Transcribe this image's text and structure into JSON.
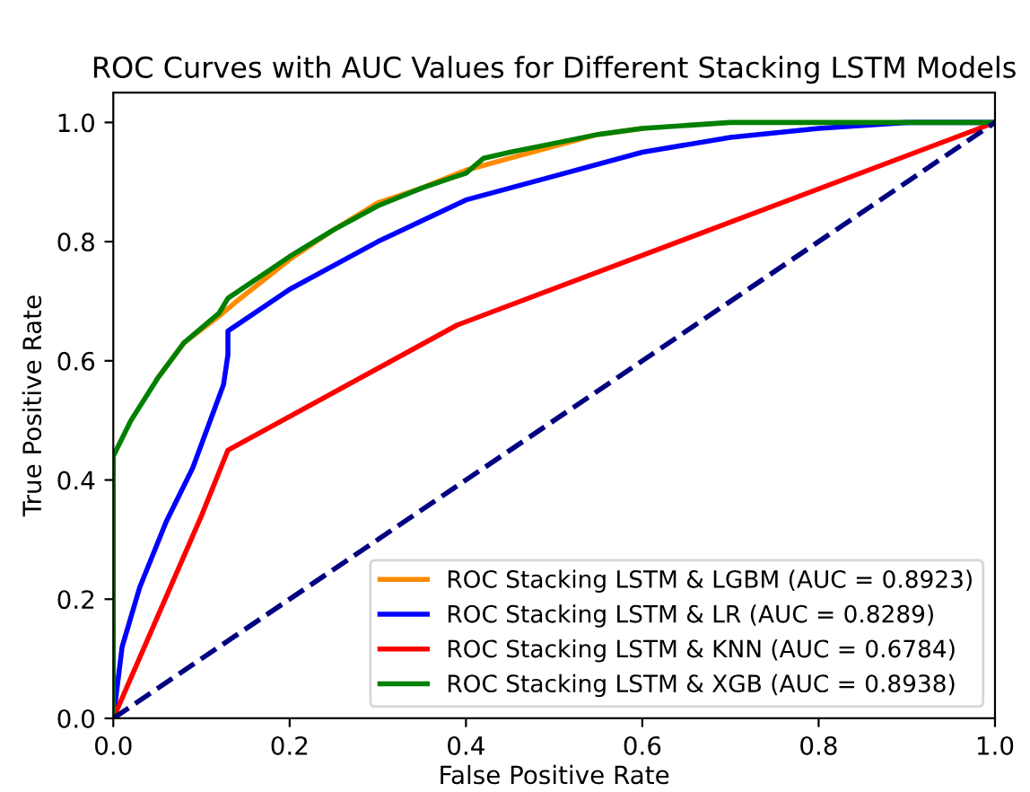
{
  "chart_data": {
    "type": "line",
    "title": "ROC Curves with AUC Values for Different Stacking LSTM Models",
    "xlabel": "False Positive Rate",
    "ylabel": "True Positive Rate",
    "xlim": [
      0,
      1
    ],
    "ylim": [
      0,
      1.05
    ],
    "xticks": [
      {
        "value": 0,
        "label": "0.0"
      },
      {
        "value": 0.2,
        "label": "0.2"
      },
      {
        "value": 0.4,
        "label": "0.4"
      },
      {
        "value": 0.6,
        "label": "0.6"
      },
      {
        "value": 0.8,
        "label": "0.8"
      },
      {
        "value": 1,
        "label": "1.0"
      }
    ],
    "yticks": [
      {
        "value": 0,
        "label": "0.0"
      },
      {
        "value": 0.2,
        "label": "0.2"
      },
      {
        "value": 0.4,
        "label": "0.4"
      },
      {
        "value": 0.6,
        "label": "0.6"
      },
      {
        "value": 0.8,
        "label": "0.8"
      },
      {
        "value": 1,
        "label": "1.0"
      }
    ],
    "grid": false,
    "legend": "bottom right",
    "marker": "none",
    "series": [
      {
        "name": "ROC Stacking LSTM & LGBM (AUC = 0.8923)",
        "color": "#ff8c00",
        "x": [
          0.05,
          0.08,
          0.12,
          0.14,
          0.2,
          0.25,
          0.3,
          0.35,
          0.4,
          0.45,
          0.5,
          0.55,
          0.6
        ],
        "values": [
          0.57,
          0.63,
          0.675,
          0.7,
          0.77,
          0.82,
          0.865,
          0.89,
          0.92,
          0.94,
          0.96,
          0.98,
          0.99
        ]
      },
      {
        "name": "ROC Stacking LSTM & LR (AUC = 0.8289)",
        "color": "#0000ff",
        "x": [
          0,
          0.01,
          0.03,
          0.06,
          0.09,
          0.11,
          0.125,
          0.13,
          0.13,
          0.2,
          0.3,
          0.4,
          0.5,
          0.6,
          0.7,
          0.8,
          0.9,
          1
        ],
        "values": [
          0,
          0.12,
          0.22,
          0.33,
          0.42,
          0.5,
          0.56,
          0.61,
          0.65,
          0.72,
          0.8,
          0.87,
          0.91,
          0.95,
          0.975,
          0.99,
          1.0,
          1.0
        ]
      },
      {
        "name": "ROC Stacking LSTM & KNN (AUC = 0.6784)",
        "color": "#ff0000",
        "x": [
          0,
          0.1,
          0.13,
          0.39,
          1
        ],
        "values": [
          0,
          0.34,
          0.45,
          0.66,
          1
        ]
      },
      {
        "name": "ROC Stacking LSTM & XGB (AUC = 0.8938)",
        "color": "#008000",
        "x": [
          0,
          0,
          0.02,
          0.05,
          0.08,
          0.12,
          0.13,
          0.2,
          0.25,
          0.3,
          0.35,
          0.4,
          0.42,
          0.45,
          0.5,
          0.55,
          0.6,
          0.7,
          1
        ],
        "values": [
          0,
          0.44,
          0.5,
          0.57,
          0.63,
          0.68,
          0.705,
          0.775,
          0.82,
          0.86,
          0.89,
          0.915,
          0.94,
          0.95,
          0.965,
          0.98,
          0.99,
          1.0,
          1.0
        ]
      },
      {
        "color": "#000080",
        "line_style": "dashed",
        "x": [
          0,
          1
        ],
        "values": [
          0,
          1
        ]
      }
    ]
  }
}
